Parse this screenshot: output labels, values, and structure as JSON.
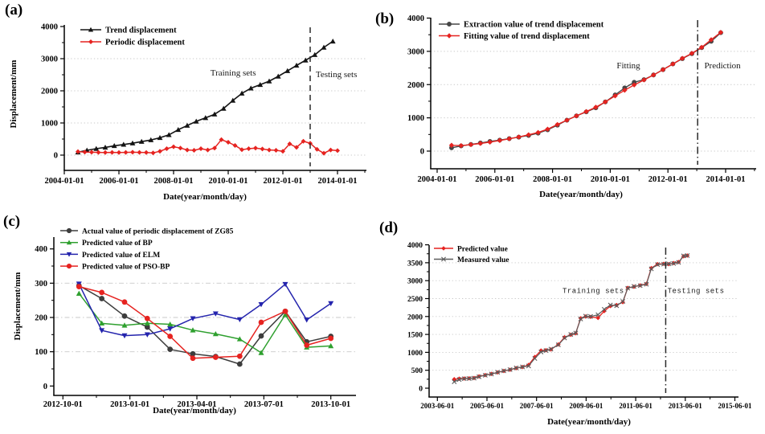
{
  "figure": {
    "background": "#ffffff",
    "axis_color": "#000000",
    "grid_color": "#c9c9c9",
    "annotation_color": "#1a1a1a"
  },
  "chart_data": [
    {
      "id": "a",
      "letter": "(a)",
      "type": "line",
      "xlabel": "Date(year/month/day)",
      "ylabel": "Displacement/mm",
      "xlim": [
        2004.0,
        2015.06
      ],
      "ylim": [
        -475,
        4000
      ],
      "grid": "dotted-horizontal",
      "legend_position": "top-left-inside",
      "x_ticks": [
        {
          "v": 2004.0,
          "label": "2004-01-01"
        },
        {
          "v": 2006.0,
          "label": "2006-01-01"
        },
        {
          "v": 2008.0,
          "label": "2008-01-01"
        },
        {
          "v": 2010.0,
          "label": "2010-01-01"
        },
        {
          "v": 2012.0,
          "label": "2012-01-01"
        },
        {
          "v": 2014.0,
          "label": "2014-01-01"
        }
      ],
      "x_minor": [
        2005,
        2007,
        2009,
        2011,
        2013,
        2015
      ],
      "y_ticks": [
        {
          "v": 0,
          "label": "0"
        },
        {
          "v": 1000,
          "label": "1000"
        },
        {
          "v": 2000,
          "label": "2000"
        },
        {
          "v": 3000,
          "label": "3000"
        },
        {
          "v": 4000,
          "label": "4000"
        }
      ],
      "y_minor": [
        500,
        1500,
        2500,
        3500
      ],
      "grid_y": [
        0,
        1000,
        2000,
        3000
      ],
      "split_line": {
        "x": 2013.0,
        "style": "dashed"
      },
      "annotations": [
        {
          "text": "Training sets",
          "x": 2010.18,
          "y": 2575,
          "mono": false
        },
        {
          "text": "Testing sets",
          "x": 2013.96,
          "y": 2525,
          "mono": false
        }
      ],
      "series": [
        {
          "name": "Trend displacement",
          "color": "#141414",
          "marker": "triangle-up",
          "msize": 3.4,
          "width": 1.6,
          "x": [
            2004.5,
            2004.83,
            2005.17,
            2005.5,
            2005.83,
            2006.17,
            2006.5,
            2006.83,
            2007.17,
            2007.5,
            2007.83,
            2008.17,
            2008.5,
            2008.83,
            2009.17,
            2009.5,
            2009.83,
            2010.17,
            2010.5,
            2010.83,
            2011.17,
            2011.5,
            2011.83,
            2012.17,
            2012.5,
            2012.83,
            2013.17,
            2013.5,
            2013.83
          ],
          "y": [
            90,
            150,
            200,
            240,
            290,
            330,
            370,
            420,
            470,
            540,
            630,
            790,
            920,
            1050,
            1160,
            1270,
            1450,
            1700,
            1920,
            2080,
            2190,
            2300,
            2450,
            2620,
            2790,
            2950,
            3120,
            3350,
            3540
          ]
        },
        {
          "name": "Periodic displacement",
          "color": "#e62320",
          "marker": "diamond",
          "msize": 3.0,
          "width": 1.5,
          "x": [
            2004.5,
            2004.75,
            2005.0,
            2005.25,
            2005.5,
            2005.75,
            2006.0,
            2006.25,
            2006.5,
            2006.75,
            2007.0,
            2007.25,
            2007.5,
            2007.75,
            2008.0,
            2008.25,
            2008.5,
            2008.75,
            2009.0,
            2009.25,
            2009.5,
            2009.75,
            2010.0,
            2010.25,
            2010.5,
            2010.75,
            2011.0,
            2011.25,
            2011.5,
            2011.75,
            2012.0,
            2012.25,
            2012.5,
            2012.75,
            2013.0,
            2013.25,
            2013.5,
            2013.75,
            2014.0
          ],
          "y": [
            110,
            95,
            90,
            85,
            80,
            85,
            80,
            85,
            90,
            85,
            80,
            70,
            120,
            200,
            260,
            220,
            160,
            150,
            200,
            160,
            220,
            480,
            400,
            300,
            170,
            200,
            220,
            190,
            160,
            150,
            120,
            350,
            240,
            430,
            370,
            180,
            60,
            160,
            140
          ]
        }
      ]
    },
    {
      "id": "b",
      "letter": "(b)",
      "type": "line",
      "xlabel": "Date(year/month/day)",
      "ylabel": "",
      "xlim": [
        2004.0,
        2015.06
      ],
      "ylim": [
        -530,
        4000
      ],
      "grid": "dotted-horizontal",
      "legend_position": "top-left-inside",
      "x_ticks": [
        {
          "v": 2004.0,
          "label": "2004-01-01"
        },
        {
          "v": 2006.0,
          "label": "2006-01-01"
        },
        {
          "v": 2008.0,
          "label": "2008-01-01"
        },
        {
          "v": 2010.0,
          "label": "2010-01-01"
        },
        {
          "v": 2012.0,
          "label": "2012-01-01"
        },
        {
          "v": 2014.0,
          "label": "2014-01-01"
        }
      ],
      "x_minor": [
        2005,
        2007,
        2009,
        2011,
        2013,
        2015
      ],
      "y_ticks": [
        {
          "v": 0,
          "label": "0"
        },
        {
          "v": 1000,
          "label": "1000"
        },
        {
          "v": 2000,
          "label": "2000"
        },
        {
          "v": 3000,
          "label": "3000"
        },
        {
          "v": 4000,
          "label": "4000"
        }
      ],
      "y_minor": [
        500,
        1500,
        2500,
        3500
      ],
      "grid_y": [
        0,
        1000,
        2000,
        3000
      ],
      "split_line": {
        "x": 2013.03,
        "style": "dashdot"
      },
      "annotations": [
        {
          "text": "Fitting",
          "x": 2010.63,
          "y": 2590,
          "mono": false
        },
        {
          "text": "Prediction",
          "x": 2013.89,
          "y": 2590,
          "mono": false
        }
      ],
      "series": [
        {
          "name": "Extraction value of trend displacement",
          "color": "#474747",
          "marker": "circle",
          "msize": 3.0,
          "width": 1.4,
          "x": [
            2004.5,
            2004.83,
            2005.17,
            2005.5,
            2005.83,
            2006.17,
            2006.5,
            2006.83,
            2007.17,
            2007.5,
            2007.83,
            2008.17,
            2008.5,
            2008.83,
            2009.17,
            2009.5,
            2009.83,
            2010.17,
            2010.5,
            2010.83,
            2011.17,
            2011.5,
            2011.83,
            2012.17,
            2012.5,
            2012.83,
            2013.17,
            2013.5,
            2013.83
          ],
          "y": [
            100,
            155,
            200,
            245,
            290,
            330,
            375,
            420,
            470,
            540,
            640,
            780,
            930,
            1060,
            1180,
            1300,
            1480,
            1690,
            1900,
            2070,
            2150,
            2290,
            2450,
            2620,
            2780,
            2930,
            3110,
            3300,
            3560
          ]
        },
        {
          "name": "Fitting value of trend displacement",
          "color": "#e62320",
          "marker": "diamond",
          "msize": 3.2,
          "width": 1.4,
          "x": [
            2004.5,
            2004.83,
            2005.17,
            2005.5,
            2005.83,
            2006.17,
            2006.5,
            2006.83,
            2007.17,
            2007.5,
            2007.83,
            2008.17,
            2008.5,
            2008.83,
            2009.17,
            2009.5,
            2009.83,
            2010.17,
            2010.5,
            2010.83,
            2011.17,
            2011.5,
            2011.83,
            2012.17,
            2012.5,
            2012.83,
            2013.17,
            2013.5,
            2013.83
          ],
          "y": [
            175,
            165,
            195,
            230,
            270,
            320,
            370,
            425,
            490,
            560,
            660,
            800,
            930,
            1060,
            1190,
            1320,
            1480,
            1660,
            1830,
            1990,
            2140,
            2290,
            2450,
            2620,
            2790,
            2940,
            3120,
            3350,
            3570
          ]
        }
      ]
    },
    {
      "id": "c",
      "letter": "(c)",
      "type": "line",
      "xlabel": "Date(year/month/day)",
      "ylabel": "Displacement/mm",
      "xlim": [
        2012.72,
        2013.97
      ],
      "ylim": [
        -28,
        437
      ],
      "grid": "dashdot-horizontal",
      "legend_position": "top-left-inside",
      "x_ticks": [
        {
          "v": 2012.75,
          "label": "2012-10-01"
        },
        {
          "v": 2013.0,
          "label": "2013-01-01"
        },
        {
          "v": 2013.25,
          "label": "2013-04-01"
        },
        {
          "v": 2013.5,
          "label": "2013-07-01"
        },
        {
          "v": 2013.75,
          "label": "2013-10-01"
        }
      ],
      "x_minor": [
        2012.875,
        2013.125,
        2013.375,
        2013.625
      ],
      "y_ticks": [
        {
          "v": 0,
          "label": "0"
        },
        {
          "v": 100,
          "label": "100"
        },
        {
          "v": 200,
          "label": "200"
        },
        {
          "v": 300,
          "label": "300"
        },
        {
          "v": 400,
          "label": "400"
        }
      ],
      "y_minor": [
        50,
        150,
        250,
        350
      ],
      "grid_y": [
        100,
        200,
        300
      ],
      "split_line": null,
      "annotations": [],
      "series": [
        {
          "name": "Actual value of periodic displacement of ZG85",
          "color": "#3d3d3d",
          "marker": "circle",
          "msize": 3.5,
          "width": 1.5,
          "x": [
            2012.81,
            2012.895,
            2012.98,
            2013.065,
            2013.15,
            2013.235,
            2013.32,
            2013.41,
            2013.49,
            2013.58,
            2013.66,
            2013.75
          ],
          "y": [
            293,
            255,
            204,
            172,
            107,
            94,
            86,
            64,
            146,
            218,
            129,
            145
          ]
        },
        {
          "name": "Predicted value of BP",
          "color": "#2fa02f",
          "marker": "triangle-up",
          "msize": 3.5,
          "width": 1.5,
          "x": [
            2012.81,
            2012.895,
            2012.98,
            2013.065,
            2013.15,
            2013.235,
            2013.32,
            2013.41,
            2013.49,
            2013.58,
            2013.66,
            2013.75
          ],
          "y": [
            270,
            183,
            177,
            183,
            180,
            163,
            152,
            137,
            97,
            208,
            113,
            117
          ]
        },
        {
          "name": "Predicted value of ELM",
          "color": "#2424ad",
          "marker": "triangle-down",
          "msize": 3.5,
          "width": 1.5,
          "x": [
            2012.81,
            2012.895,
            2012.98,
            2013.065,
            2013.15,
            2013.235,
            2013.32,
            2013.41,
            2013.49,
            2013.58,
            2013.66,
            2013.75
          ],
          "y": [
            298,
            162,
            147,
            150,
            167,
            197,
            211,
            194,
            238,
            297,
            193,
            241
          ]
        },
        {
          "name": "Predicted value of PSO-BP",
          "color": "#e62320",
          "marker": "circle",
          "msize": 3.5,
          "width": 1.5,
          "x": [
            2012.81,
            2012.895,
            2012.98,
            2013.065,
            2013.15,
            2013.235,
            2013.32,
            2013.41,
            2013.49,
            2013.58,
            2013.66,
            2013.75
          ],
          "y": [
            290,
            273,
            245,
            197,
            145,
            81,
            84,
            87,
            186,
            218,
            119,
            139
          ]
        }
      ]
    },
    {
      "id": "d",
      "letter": "(d)",
      "type": "line",
      "xlabel": "Date(year/month/day)",
      "ylabel": "",
      "xlim": [
        2003.42,
        2015.56
      ],
      "ylim": [
        -246,
        4000
      ],
      "grid": "dotted-horizontal",
      "legend_position": "top-left-inside",
      "x_ticks": [
        {
          "v": 2003.42,
          "label": "2003-06-01"
        },
        {
          "v": 2005.42,
          "label": "2005-06-01"
        },
        {
          "v": 2007.42,
          "label": "2007-06-01"
        },
        {
          "v": 2009.42,
          "label": "2009-06-01"
        },
        {
          "v": 2011.42,
          "label": "2011-06-01"
        },
        {
          "v": 2013.42,
          "label": "2013-06-01"
        },
        {
          "v": 2015.42,
          "label": "2015-06-01"
        }
      ],
      "x_minor": [
        2004.42,
        2006.42,
        2008.42,
        2010.42,
        2012.42,
        2014.42
      ],
      "y_ticks": [
        {
          "v": 0,
          "label": "0"
        },
        {
          "v": 500,
          "label": "500"
        },
        {
          "v": 1000,
          "label": "1000"
        },
        {
          "v": 1500,
          "label": "1500"
        },
        {
          "v": 2000,
          "label": "2000"
        },
        {
          "v": 2500,
          "label": "2500"
        },
        {
          "v": 3000,
          "label": "3000"
        },
        {
          "v": 3500,
          "label": "3500"
        },
        {
          "v": 4000,
          "label": "4000"
        }
      ],
      "y_minor": [
        250,
        750,
        1250,
        1750,
        2250,
        2750,
        3250,
        3750
      ],
      "grid_y": [
        500,
        1000,
        1500,
        2000,
        2500,
        3000,
        3500
      ],
      "split_line": {
        "x": 2012.63,
        "style": "dashdot"
      },
      "annotations": [
        {
          "text": "Training sets",
          "x": 2009.71,
          "y": 2750,
          "mono": true
        },
        {
          "text": "Testing sets",
          "x": 2013.85,
          "y": 2750,
          "mono": true
        }
      ],
      "series": [
        {
          "name": "Predicted value",
          "color": "#e62320",
          "marker": "diamond",
          "msize": 2.8,
          "width": 1.3,
          "x": [
            2004.1,
            2004.3,
            2004.5,
            2004.7,
            2004.9,
            2005.1,
            2005.35,
            2005.6,
            2005.85,
            2006.1,
            2006.35,
            2006.6,
            2006.85,
            2007.1,
            2007.35,
            2007.6,
            2007.8,
            2008.0,
            2008.3,
            2008.55,
            2008.8,
            2009.0,
            2009.2,
            2009.4,
            2009.6,
            2009.9,
            2010.15,
            2010.4,
            2010.65,
            2010.9,
            2011.1,
            2011.35,
            2011.6,
            2011.85,
            2012.05,
            2012.3,
            2012.55,
            2012.75,
            2012.95,
            2013.15,
            2013.35,
            2013.5
          ],
          "y": [
            250,
            265,
            270,
            275,
            285,
            330,
            365,
            400,
            440,
            480,
            515,
            560,
            590,
            650,
            870,
            1050,
            1060,
            1080,
            1220,
            1420,
            1490,
            1530,
            1950,
            2000,
            1990,
            1960,
            2150,
            2290,
            2320,
            2400,
            2800,
            2830,
            2870,
            2910,
            3350,
            3460,
            3470,
            3460,
            3490,
            3520,
            3680,
            3700
          ]
        },
        {
          "name": "Measured value",
          "color": "#5c5c5c",
          "marker": "x",
          "msize": 2.6,
          "width": 1.2,
          "x": [
            2004.1,
            2004.3,
            2004.5,
            2004.7,
            2004.9,
            2005.1,
            2005.35,
            2005.6,
            2005.85,
            2006.1,
            2006.35,
            2006.6,
            2006.85,
            2007.1,
            2007.35,
            2007.6,
            2007.8,
            2008.0,
            2008.3,
            2008.55,
            2008.8,
            2009.0,
            2009.2,
            2009.4,
            2009.6,
            2009.9,
            2010.15,
            2010.4,
            2010.65,
            2010.9,
            2011.1,
            2011.35,
            2011.6,
            2011.85,
            2012.05,
            2012.3,
            2012.55,
            2012.75,
            2012.95,
            2013.15,
            2013.35,
            2013.5
          ],
          "y": [
            180,
            240,
            265,
            270,
            280,
            320,
            360,
            395,
            445,
            485,
            520,
            565,
            595,
            620,
            830,
            1010,
            1050,
            1090,
            1210,
            1400,
            1500,
            1540,
            1930,
            2010,
            2000,
            2050,
            2200,
            2320,
            2300,
            2420,
            2790,
            2840,
            2860,
            2900,
            3330,
            3450,
            3460,
            3470,
            3480,
            3510,
            3690,
            3700
          ]
        }
      ]
    }
  ]
}
